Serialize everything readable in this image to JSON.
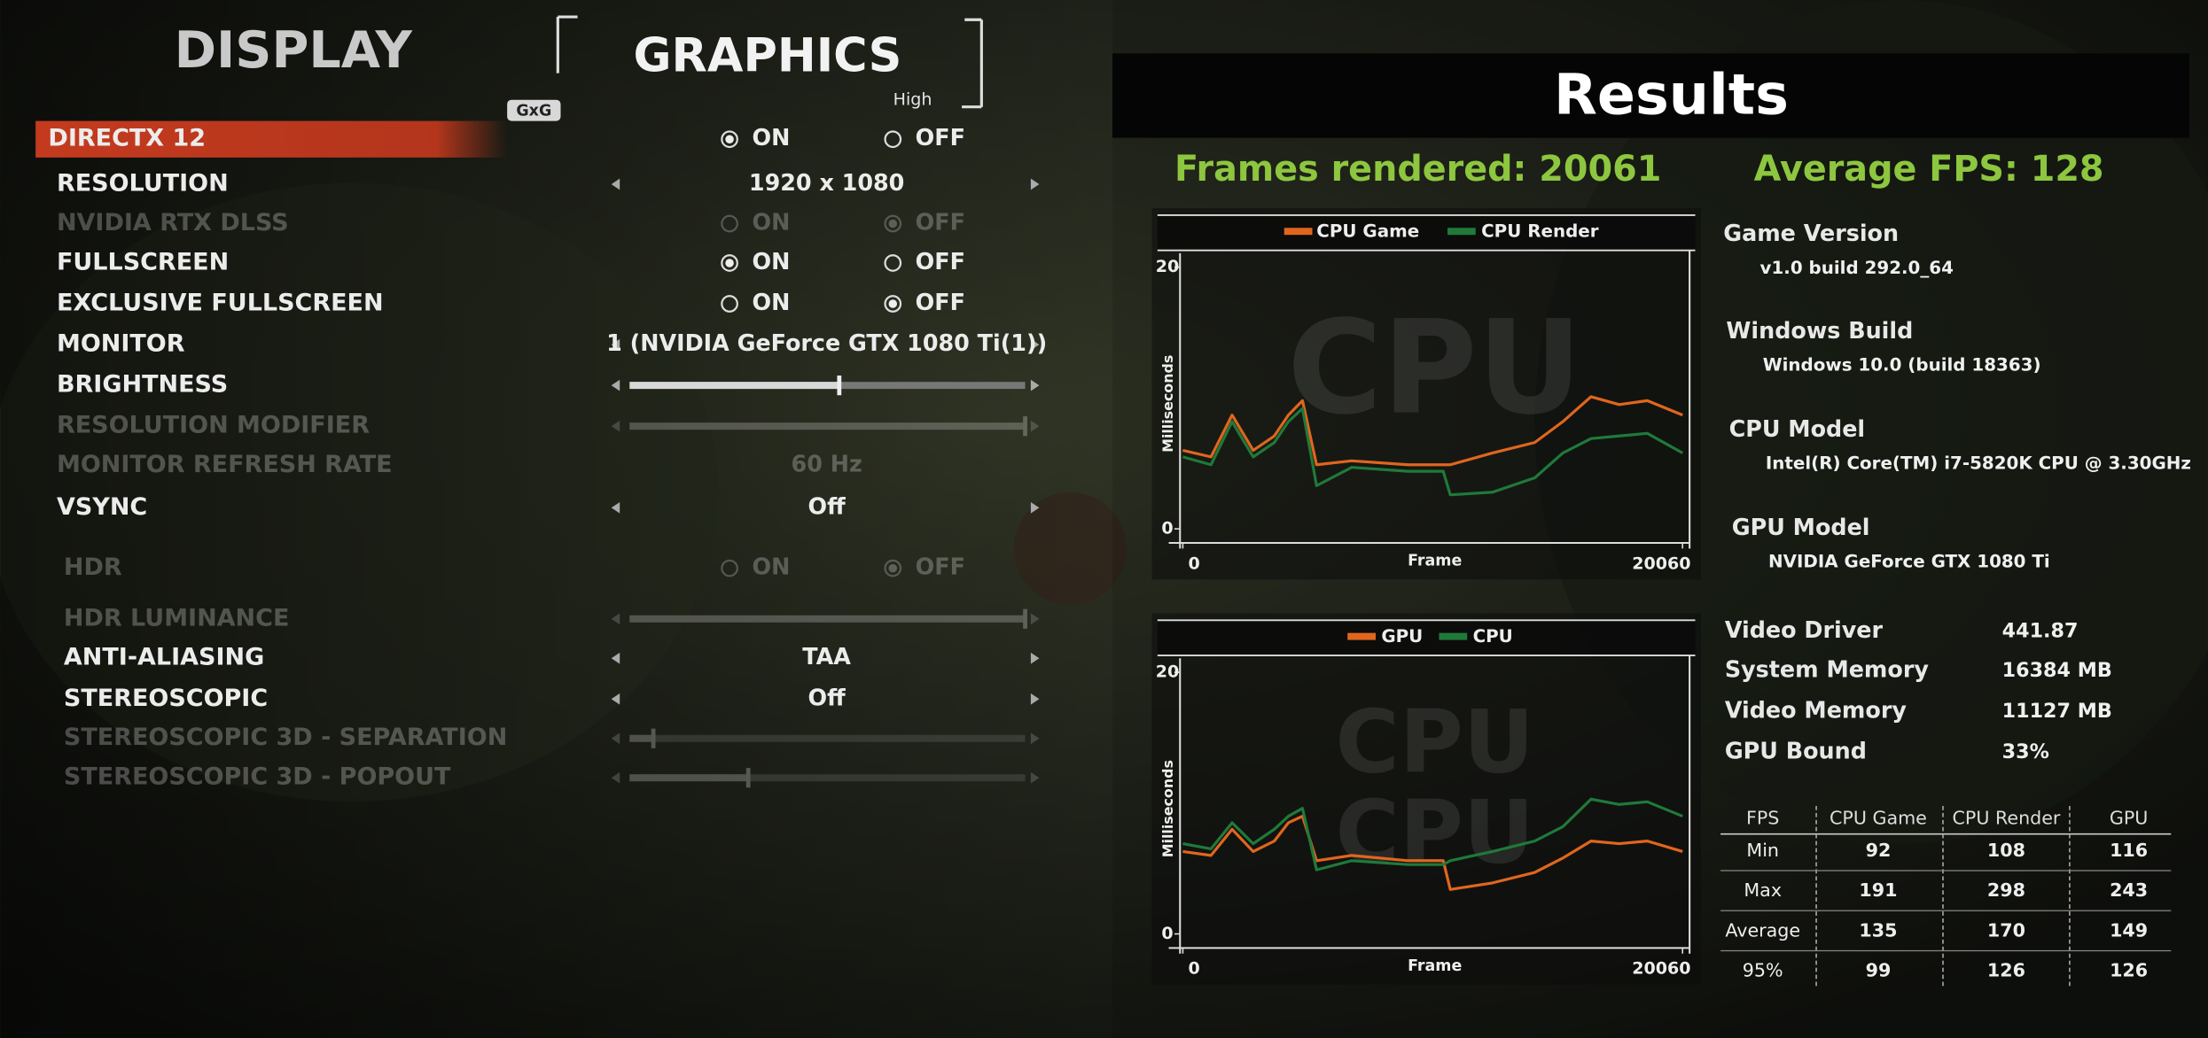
{
  "menu": {
    "tabs": [
      "DISPLAY",
      "GRAPHICS"
    ],
    "preset": "High",
    "logo": "GxG",
    "settings": [
      {
        "label": "DIRECTX 12",
        "options": [
          "ON",
          "OFF"
        ],
        "selected": 0,
        "active": true
      },
      {
        "label": "RESOLUTION",
        "value": "1920 x 1080"
      },
      {
        "label": "NVIDIA RTX DLSS",
        "options": [
          "ON",
          "OFF"
        ],
        "selected": 1,
        "disabled": true
      },
      {
        "label": "FULLSCREEN",
        "options": [
          "ON",
          "OFF"
        ],
        "selected": 0
      },
      {
        "label": "EXCLUSIVE FULLSCREEN",
        "options": [
          "ON",
          "OFF"
        ],
        "selected": 1
      },
      {
        "label": "MONITOR",
        "value": "1 (NVIDIA GeForce GTX 1080 Ti(1))"
      },
      {
        "label": "BRIGHTNESS",
        "slider": 0.53
      },
      {
        "label": "RESOLUTION MODIFIER",
        "slider": 1,
        "disabled": true
      },
      {
        "label": "MONITOR REFRESH RATE",
        "value": "60 Hz",
        "disabled": true
      },
      {
        "label": "VSYNC",
        "value": "Off"
      },
      {
        "label": "HDR",
        "options": [
          "ON",
          "OFF"
        ],
        "selected": 1,
        "disabled": true
      },
      {
        "label": "HDR LUMINANCE",
        "slider": 1,
        "disabled": true
      },
      {
        "label": "ANTI-ALIASING",
        "value": "TAA"
      },
      {
        "label": "STEREOSCOPIC",
        "value": "Off"
      },
      {
        "label": "STEREOSCOPIC 3D - SEPARATION",
        "slider": 0.06,
        "disabled": true
      },
      {
        "label": "STEREOSCOPIC 3D - POPOUT",
        "slider": 0.3,
        "disabled": true
      }
    ]
  },
  "results": {
    "title": "Results",
    "frames_rendered": "Frames rendered: 20061",
    "average_fps": "Average FPS: 128",
    "system": [
      {
        "label": "Game Version",
        "value": "v1.0 build 292.0_64"
      },
      {
        "label": "Windows Build",
        "value": "Windows 10.0 (build 18363)"
      },
      {
        "label": "CPU Model",
        "value": "Intel(R) Core(TM) i7-5820K CPU @ 3.30GHz"
      },
      {
        "label": "GPU Model",
        "value": "NVIDIA GeForce GTX 1080 Ti"
      }
    ],
    "stats": [
      {
        "label": "Video Driver",
        "value": "441.87"
      },
      {
        "label": "System Memory",
        "value": "16384 MB"
      },
      {
        "label": "Video Memory",
        "value": "11127 MB"
      },
      {
        "label": "GPU Bound",
        "value": "33%"
      }
    ],
    "table": {
      "header": [
        "FPS",
        "CPU Game",
        "CPU Render",
        "GPU"
      ],
      "rows": [
        [
          "Min",
          92,
          108,
          116
        ],
        [
          "Max",
          191,
          298,
          243
        ],
        [
          "Average",
          135,
          170,
          149
        ],
        [
          "95%",
          99,
          126,
          126
        ]
      ]
    }
  },
  "chart_data": [
    {
      "type": "line",
      "watermark": [
        "CPU"
      ],
      "xlabel": "Frame",
      "ylabel": "Milliseconds",
      "x": [
        0,
        1130,
        1977,
        2825,
        3673,
        4238,
        4803,
        5368,
        6781,
        9041,
        10453,
        10736,
        12431,
        14126,
        15256,
        16386,
        17516,
        18646,
        20060
      ],
      "series": [
        {
          "name": "CPU Game",
          "color": "#e0661e",
          "values": [
            6.0,
            5.5,
            8.7,
            6.0,
            7.1,
            8.7,
            9.8,
            4.9,
            5.2,
            4.9,
            4.9,
            4.9,
            5.8,
            6.6,
            8.2,
            10.1,
            9.5,
            9.8,
            8.7
          ]
        },
        {
          "name": "CPU Render",
          "color": "#1f7a3a",
          "values": [
            5.5,
            4.9,
            8.2,
            5.5,
            6.6,
            8.2,
            9.2,
            3.3,
            4.7,
            4.4,
            4.4,
            2.6,
            2.8,
            3.9,
            5.8,
            6.9,
            7.1,
            7.3,
            5.8
          ]
        }
      ],
      "xlim": [
        0,
        20060
      ],
      "xticks": [
        0,
        20060
      ],
      "ylim": [
        0,
        20
      ],
      "yticks": [
        0,
        20
      ]
    },
    {
      "type": "line",
      "watermark": [
        "CPU",
        "CPU"
      ],
      "xlabel": "Frame",
      "ylabel": "Milliseconds",
      "x": [
        0,
        1130,
        1977,
        2825,
        3673,
        4238,
        4803,
        5368,
        6781,
        9041,
        10453,
        10736,
        12431,
        14126,
        15256,
        16386,
        17516,
        18646,
        20060
      ],
      "series": [
        {
          "name": "GPU",
          "color": "#e0661e",
          "values": [
            6.3,
            6.0,
            8.0,
            6.3,
            7.1,
            8.5,
            9.0,
            5.6,
            6.0,
            5.6,
            5.6,
            3.4,
            3.9,
            4.7,
            5.8,
            7.1,
            6.9,
            7.1,
            6.3
          ]
        },
        {
          "name": "CPU",
          "color": "#1f7a3a",
          "values": [
            6.9,
            6.5,
            8.5,
            6.9,
            8.0,
            9.0,
            9.6,
            4.9,
            5.6,
            5.3,
            5.3,
            5.6,
            6.3,
            7.1,
            8.2,
            10.3,
            9.9,
            10.1,
            9.0
          ]
        }
      ],
      "xlim": [
        0,
        20060
      ],
      "xticks": [
        0,
        20060
      ],
      "ylim": [
        0,
        20
      ],
      "yticks": [
        0,
        20
      ]
    }
  ]
}
